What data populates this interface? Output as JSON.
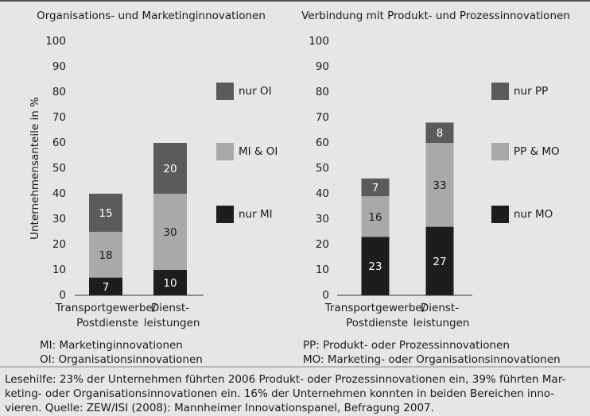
{
  "chart_data": [
    {
      "type": "bar",
      "stacked": true,
      "title": "Organisations- und Marketinginnovationen",
      "ylabel": "Unternehmensanteile in %",
      "categories": [
        "Transportgewerbe/\nPostdienste",
        "Dienst-\nleistungen"
      ],
      "series": [
        {
          "name": "nur MI",
          "color": "#1f1c1c",
          "values": [
            7,
            10
          ]
        },
        {
          "name": "MI & OI",
          "color": "#a9a9a9",
          "values": [
            18,
            30
          ]
        },
        {
          "name": "nur OI",
          "color": "#5b5b5b",
          "values": [
            15,
            20
          ]
        }
      ],
      "ylim": [
        0,
        100
      ],
      "yticks": [
        0,
        10,
        20,
        30,
        40,
        50,
        60,
        70,
        80,
        90,
        100
      ],
      "notes": [
        "MI: Marketinginnovationen",
        "OI: Organisationsinnovationen"
      ]
    },
    {
      "type": "bar",
      "stacked": true,
      "title": "Verbindung mit Produkt- und Prozessinnovationen",
      "categories": [
        "Transportgewerbe/\nPostdienste",
        "Dienst-\nleistungen"
      ],
      "series": [
        {
          "name": "nur MO",
          "color": "#1f1c1c",
          "values": [
            23,
            27
          ]
        },
        {
          "name": "PP & MO",
          "color": "#a9a9a9",
          "values": [
            16,
            33
          ]
        },
        {
          "name": "nur PP",
          "color": "#5b5b5b",
          "values": [
            7,
            8
          ]
        }
      ],
      "ylim": [
        0,
        100
      ],
      "yticks": [
        0,
        10,
        20,
        30,
        40,
        50,
        60,
        70,
        80,
        90,
        100
      ],
      "notes": [
        "PP: Produkt- oder Prozessinnovationen",
        "MO: Marketing- oder Organisationsinnovationen"
      ]
    }
  ],
  "footer": [
    "Lesehilfe: 23% der Unternehmen führten 2006 Produkt- oder Prozessinnovationen ein, 39% führten Mar-",
    "keting- oder Organisationsinnovationen ein. 16% der Unternehmen konnten in beiden Bereichen inno-",
    "vieren. Quelle: ZEW/ISI (2008): Mannheimer Innovationspanel, Befragung 2007."
  ]
}
